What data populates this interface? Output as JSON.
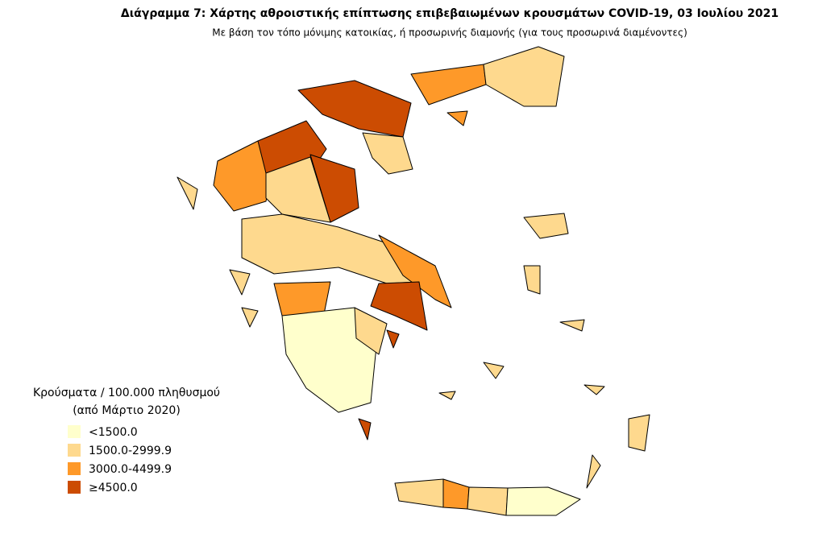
{
  "title": "Διάγραμμα 7: Χάρτης αθροιστικής επίπτωσης επιβεβαιωμένων κρουσμάτων COVID-19, 03 Ιουλίου 2021",
  "subtitle": "Με βάση τον τόπο μόνιμης κατοικίας, ή προσωρινής διαμονής (για τους προσωρινά διαμένοντες)",
  "legend": {
    "title": "Κρούσματα / 100.000 πληθυσμού",
    "subtitle": "(από Μάρτιο 2020)",
    "items": [
      {
        "label": "<1500.0",
        "color": "#ffffcc"
      },
      {
        "label": "1500.0-2999.9",
        "color": "#fed98e"
      },
      {
        "label": "3000.0-4499.9",
        "color": "#fe9929"
      },
      {
        "label": "≥4500.0",
        "color": "#cc4c02"
      }
    ]
  }
}
